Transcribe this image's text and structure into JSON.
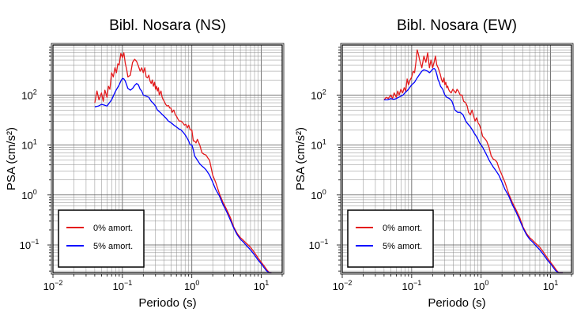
{
  "chart_data": [
    {
      "type": "line",
      "title": "Bibl. Nosara (NS)",
      "xlabel": "Periodo (s)",
      "ylabel": "PSA (cm/s²)",
      "x_scale": "log",
      "y_scale": "log",
      "xlim": [
        0.01,
        20
      ],
      "ylim": [
        0.028,
        1000
      ],
      "x_ticks": [
        {
          "base": "10",
          "exp": "−2"
        },
        {
          "base": "10",
          "exp": "−1"
        },
        {
          "base": "10",
          "exp": "0"
        },
        {
          "base": "10",
          "exp": "1"
        }
      ],
      "y_ticks": [
        {
          "base": "10",
          "exp": "−1"
        },
        {
          "base": "10",
          "exp": "0"
        },
        {
          "base": "10",
          "exp": "1"
        },
        {
          "base": "10",
          "exp": "2"
        }
      ],
      "grid": true,
      "legend_position": "bottom-left",
      "series": [
        {
          "name": "0% amort.",
          "color": "#e41a1c",
          "x": [
            0.04,
            0.043,
            0.046,
            0.05,
            0.053,
            0.056,
            0.06,
            0.063,
            0.066,
            0.07,
            0.074,
            0.078,
            0.082,
            0.086,
            0.09,
            0.095,
            0.1,
            0.105,
            0.11,
            0.115,
            0.12,
            0.13,
            0.14,
            0.15,
            0.16,
            0.17,
            0.18,
            0.19,
            0.2,
            0.21,
            0.22,
            0.23,
            0.24,
            0.25,
            0.26,
            0.27,
            0.28,
            0.29,
            0.3,
            0.31,
            0.32,
            0.33,
            0.34,
            0.35,
            0.36,
            0.37,
            0.38,
            0.4,
            0.42,
            0.44,
            0.46,
            0.48,
            0.5,
            0.52,
            0.55,
            0.58,
            0.6,
            0.63,
            0.66,
            0.7,
            0.74,
            0.78,
            0.82,
            0.86,
            0.9,
            0.95,
            1.0,
            1.05,
            1.1,
            1.15,
            1.2,
            1.3,
            1.4,
            1.5,
            1.6,
            1.7,
            1.8,
            2.0,
            2.2,
            2.5,
            2.8,
            3.2,
            3.6,
            4,
            4.5,
            5,
            5.5,
            6,
            7,
            8,
            9,
            10,
            11,
            12,
            13,
            14
          ],
          "y": [
            70,
            120,
            80,
            110,
            75,
            125,
            90,
            150,
            130,
            280,
            230,
            350,
            280,
            420,
            400,
            680,
            560,
            700,
            430,
            330,
            230,
            250,
            450,
            520,
            470,
            380,
            300,
            350,
            280,
            350,
            230,
            220,
            250,
            190,
            170,
            200,
            150,
            180,
            130,
            150,
            120,
            140,
            100,
            110,
            120,
            95,
            85,
            75,
            65,
            60,
            62,
            55,
            55,
            45,
            50,
            40,
            38,
            33,
            30,
            30,
            28,
            25,
            26,
            22,
            25,
            20,
            20,
            12,
            12,
            11,
            13,
            10,
            7,
            6.5,
            6.3,
            5.5,
            5.0,
            2.5,
            1.8,
            1.05,
            0.72,
            0.5,
            0.35,
            0.23,
            0.17,
            0.14,
            0.125,
            0.11,
            0.09,
            0.07,
            0.055,
            0.045,
            0.038,
            0.032,
            0.028,
            0.025
          ]
        },
        {
          "name": "5% amort.",
          "color": "#0000ff",
          "x": [
            0.04,
            0.045,
            0.05,
            0.055,
            0.06,
            0.065,
            0.07,
            0.075,
            0.08,
            0.085,
            0.09,
            0.095,
            0.1,
            0.105,
            0.11,
            0.115,
            0.12,
            0.13,
            0.14,
            0.15,
            0.16,
            0.17,
            0.18,
            0.19,
            0.2,
            0.22,
            0.24,
            0.26,
            0.28,
            0.3,
            0.32,
            0.35,
            0.38,
            0.42,
            0.46,
            0.5,
            0.55,
            0.6,
            0.65,
            0.7,
            0.75,
            0.8,
            0.85,
            0.9,
            0.95,
            1.0,
            1.05,
            1.1,
            1.2,
            1.3,
            1.4,
            1.5,
            1.6,
            1.8,
            2.0,
            2.2,
            2.5,
            2.8,
            3.2,
            3.6,
            4,
            4.5,
            5,
            5.5,
            6,
            7,
            8,
            9,
            10,
            11,
            12,
            13,
            14
          ],
          "y": [
            58,
            60,
            65,
            63,
            60,
            70,
            80,
            100,
            120,
            140,
            160,
            190,
            215,
            210,
            190,
            160,
            135,
            125,
            135,
            155,
            170,
            160,
            130,
            120,
            100,
            95,
            90,
            75,
            68,
            60,
            50,
            45,
            40,
            35,
            30,
            28,
            25,
            23,
            21,
            20,
            18,
            16,
            14,
            12,
            10,
            10,
            8,
            6,
            5.0,
            4.2,
            3.8,
            3.5,
            3.2,
            2.5,
            1.8,
            1.3,
            0.95,
            0.65,
            0.45,
            0.31,
            0.22,
            0.16,
            0.13,
            0.115,
            0.1,
            0.08,
            0.063,
            0.05,
            0.042,
            0.035,
            0.03,
            0.027,
            0.025
          ]
        }
      ]
    },
    {
      "type": "line",
      "title": "Bibl. Nosara (EW)",
      "xlabel": "Periodo (s)",
      "ylabel": "PSA (cm/s²)",
      "x_scale": "log",
      "y_scale": "log",
      "xlim": [
        0.01,
        20
      ],
      "ylim": [
        0.028,
        1000
      ],
      "x_ticks": [
        {
          "base": "10",
          "exp": "−2"
        },
        {
          "base": "10",
          "exp": "−1"
        },
        {
          "base": "10",
          "exp": "0"
        },
        {
          "base": "10",
          "exp": "1"
        }
      ],
      "y_ticks": [
        {
          "base": "10",
          "exp": "−1"
        },
        {
          "base": "10",
          "exp": "0"
        },
        {
          "base": "10",
          "exp": "1"
        },
        {
          "base": "10",
          "exp": "2"
        }
      ],
      "grid": true,
      "legend_position": "bottom-left",
      "series": [
        {
          "name": "0% amort.",
          "color": "#e41a1c",
          "x": [
            0.04,
            0.043,
            0.046,
            0.05,
            0.053,
            0.056,
            0.06,
            0.063,
            0.066,
            0.07,
            0.074,
            0.078,
            0.082,
            0.086,
            0.09,
            0.095,
            0.1,
            0.105,
            0.11,
            0.115,
            0.12,
            0.125,
            0.13,
            0.14,
            0.15,
            0.16,
            0.17,
            0.18,
            0.19,
            0.2,
            0.21,
            0.22,
            0.23,
            0.24,
            0.25,
            0.26,
            0.27,
            0.28,
            0.29,
            0.3,
            0.31,
            0.32,
            0.33,
            0.34,
            0.35,
            0.37,
            0.39,
            0.41,
            0.43,
            0.45,
            0.47,
            0.5,
            0.53,
            0.56,
            0.6,
            0.63,
            0.66,
            0.7,
            0.74,
            0.78,
            0.82,
            0.86,
            0.9,
            0.95,
            1.0,
            1.05,
            1.1,
            1.15,
            1.2,
            1.3,
            1.4,
            1.5,
            1.6,
            1.7,
            1.8,
            2.0,
            2.2,
            2.5,
            2.8,
            3.2,
            3.6,
            4,
            4.5,
            5,
            5.5,
            6,
            7,
            8,
            9,
            10,
            11,
            12,
            13,
            14,
            15
          ],
          "y": [
            80,
            90,
            85,
            100,
            85,
            110,
            90,
            120,
            100,
            130,
            110,
            140,
            120,
            210,
            160,
            200,
            230,
            300,
            280,
            450,
            800,
            650,
            500,
            350,
            600,
            450,
            700,
            350,
            500,
            350,
            450,
            600,
            400,
            350,
            300,
            250,
            200,
            180,
            220,
            160,
            180,
            140,
            150,
            130,
            120,
            110,
            130,
            120,
            110,
            130,
            120,
            100,
            100,
            75,
            70,
            60,
            45,
            40,
            50,
            38,
            30,
            35,
            28,
            25,
            20,
            15,
            14,
            13,
            12,
            9,
            6,
            5.2,
            5.0,
            4.5,
            3.5,
            2.5,
            1.8,
            1.05,
            0.72,
            0.5,
            0.35,
            0.23,
            0.17,
            0.14,
            0.125,
            0.11,
            0.09,
            0.07,
            0.055,
            0.045,
            0.038,
            0.032,
            0.028,
            0.025,
            0.022
          ]
        },
        {
          "name": "5% amort.",
          "color": "#0000ff",
          "x": [
            0.04,
            0.045,
            0.05,
            0.055,
            0.06,
            0.065,
            0.07,
            0.075,
            0.08,
            0.085,
            0.09,
            0.095,
            0.1,
            0.11,
            0.12,
            0.13,
            0.14,
            0.15,
            0.16,
            0.17,
            0.18,
            0.19,
            0.2,
            0.21,
            0.22,
            0.23,
            0.24,
            0.25,
            0.26,
            0.27,
            0.28,
            0.3,
            0.32,
            0.35,
            0.38,
            0.42,
            0.46,
            0.5,
            0.55,
            0.6,
            0.65,
            0.7,
            0.75,
            0.8,
            0.85,
            0.9,
            0.95,
            1.0,
            1.05,
            1.1,
            1.2,
            1.3,
            1.4,
            1.5,
            1.6,
            1.8,
            2.0,
            2.2,
            2.5,
            2.8,
            3.2,
            3.6,
            4,
            4.5,
            5,
            5.5,
            6,
            7,
            8,
            9,
            10,
            11,
            12,
            13,
            14,
            15
          ],
          "y": [
            80,
            80,
            85,
            82,
            85,
            90,
            95,
            100,
            110,
            120,
            130,
            145,
            160,
            180,
            220,
            260,
            300,
            320,
            310,
            300,
            280,
            300,
            330,
            340,
            320,
            260,
            200,
            180,
            150,
            140,
            130,
            100,
            90,
            85,
            75,
            50,
            45,
            45,
            40,
            30,
            26,
            23,
            20,
            17,
            15,
            13,
            11,
            10,
            9,
            8,
            6.3,
            5.0,
            4.2,
            3.6,
            3.2,
            2.5,
            1.8,
            1.3,
            0.95,
            0.65,
            0.45,
            0.31,
            0.22,
            0.16,
            0.13,
            0.115,
            0.1,
            0.08,
            0.063,
            0.05,
            0.042,
            0.035,
            0.03,
            0.027,
            0.025,
            0.022
          ]
        }
      ]
    }
  ]
}
